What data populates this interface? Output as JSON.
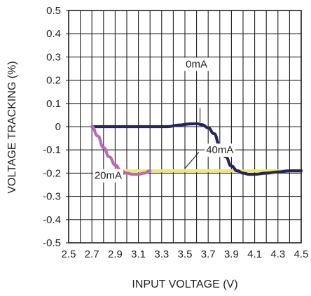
{
  "chart_data": {
    "type": "line",
    "title": "",
    "xlabel": "INPUT VOLTAGE (V)",
    "ylabel": "VOLTAGE TRACKING (%)",
    "xlim": [
      2.5,
      4.5
    ],
    "ylim": [
      -0.5,
      0.5
    ],
    "x_ticks": [
      2.5,
      2.6,
      2.7,
      2.8,
      2.9,
      3.0,
      3.1,
      3.2,
      3.3,
      3.4,
      3.5,
      3.6,
      3.7,
      3.8,
      3.9,
      4.0,
      4.1,
      4.2,
      4.3,
      4.4,
      4.5
    ],
    "x_tick_labels": [
      "2.5",
      "2.7",
      "2.9",
      "3.1",
      "3.3",
      "3.5",
      "3.7",
      "3.9",
      "4.1",
      "4.3",
      "4.5"
    ],
    "y_ticks": [
      -0.5,
      -0.4,
      -0.3,
      -0.2,
      -0.1,
      0,
      0.1,
      0.2,
      0.3,
      0.4,
      0.5
    ],
    "y_tick_labels": [
      "-0.5",
      "-0.4",
      "-0.3",
      "-0.2",
      "-0.1",
      "0",
      "0.1",
      "0.2",
      "0.3",
      "0.4",
      "0.5"
    ],
    "grid": true,
    "series": [
      {
        "name": "40mA",
        "color": "#f2ea5c",
        "x": [
          2.93,
          3.0,
          3.2,
          3.4,
          3.6,
          3.8,
          4.0,
          4.2,
          4.4,
          4.5
        ],
        "y": [
          -0.19,
          -0.19,
          -0.19,
          -0.19,
          -0.19,
          -0.19,
          -0.19,
          -0.19,
          -0.19,
          -0.19
        ]
      },
      {
        "name": "0mA",
        "color": "#27245c",
        "x": [
          2.7,
          2.8,
          3.0,
          3.2,
          3.35,
          3.45,
          3.55,
          3.6,
          3.65,
          3.7,
          3.75,
          3.8,
          3.85,
          3.9,
          3.95,
          4.0,
          4.05,
          4.1,
          4.2,
          4.3,
          4.4,
          4.5
        ],
        "y": [
          0,
          0,
          0,
          0,
          0.0,
          0.007,
          0.012,
          0.013,
          0.008,
          -0.005,
          -0.03,
          -0.08,
          -0.13,
          -0.17,
          -0.19,
          -0.2,
          -0.205,
          -0.205,
          -0.2,
          -0.195,
          -0.19,
          -0.19
        ]
      },
      {
        "name": "20mA",
        "color": "#b96ab6",
        "x": [
          2.7,
          2.75,
          2.8,
          2.85,
          2.9,
          2.95,
          3.0,
          3.05,
          3.1,
          3.15,
          3.2
        ],
        "y": [
          0,
          -0.04,
          -0.09,
          -0.13,
          -0.165,
          -0.19,
          -0.2,
          -0.205,
          -0.205,
          -0.2,
          -0.19
        ]
      }
    ],
    "annotations": [
      {
        "text": "0mA",
        "series": "0mA"
      },
      {
        "text": "40mA",
        "series": "40mA"
      },
      {
        "text": "20mA",
        "series": "20mA"
      }
    ]
  }
}
